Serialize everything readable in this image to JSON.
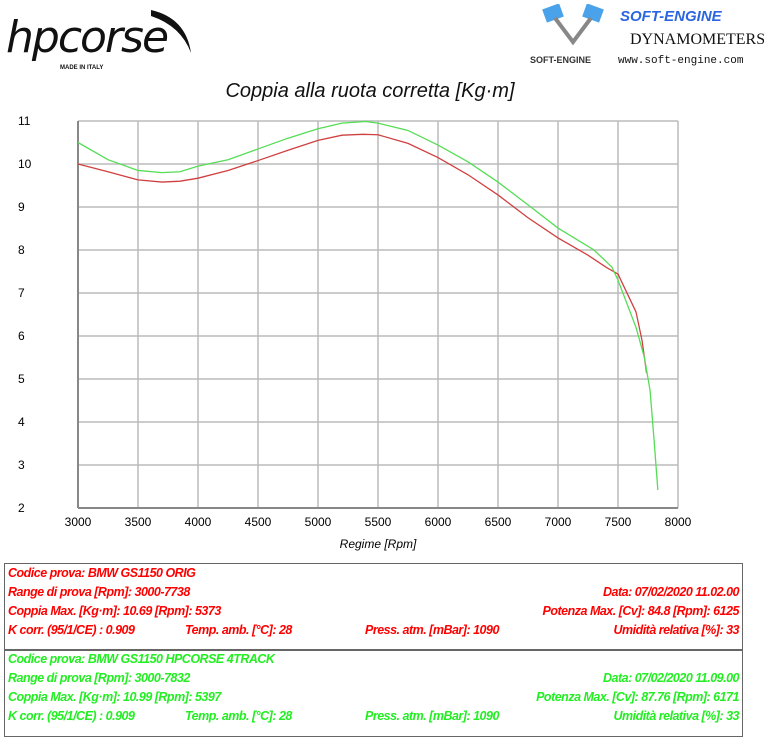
{
  "logos": {
    "left": {
      "text": "hpcorse",
      "tagline": "MADE IN ITALY"
    },
    "right": {
      "name": "SOFT-ENGINE",
      "subtitle": "DYNAMOMETERS",
      "url": "www.soft-engine.com",
      "mark": "SOFT-ENGINE"
    }
  },
  "chart_data": {
    "type": "line",
    "title": "Coppia alla ruota corretta [Kg·m]",
    "xlabel": "Regime [Rpm]",
    "ylabel": "",
    "xlim": [
      3000,
      8000
    ],
    "ylim": [
      2,
      11
    ],
    "xticks": [
      3000,
      3500,
      4000,
      4500,
      5000,
      5500,
      6000,
      6500,
      7000,
      7500,
      8000
    ],
    "yticks": [
      2,
      3,
      4,
      5,
      6,
      7,
      8,
      9,
      10,
      11
    ],
    "grid": true,
    "series": [
      {
        "color": "#d04040",
        "x": [
          3000,
          3250,
          3500,
          3700,
          3850,
          4000,
          4250,
          4500,
          4750,
          5000,
          5200,
          5373,
          5500,
          5750,
          6000,
          6250,
          6500,
          6750,
          7000,
          7250,
          7400,
          7500,
          7650,
          7700,
          7738
        ],
        "y": [
          10.0,
          9.82,
          9.63,
          9.58,
          9.6,
          9.67,
          9.85,
          10.08,
          10.32,
          10.55,
          10.67,
          10.69,
          10.68,
          10.48,
          10.15,
          9.75,
          9.28,
          8.75,
          8.28,
          7.88,
          7.6,
          7.44,
          6.56,
          5.9,
          5.14
        ]
      },
      {
        "color": "#55dd55",
        "x": [
          3000,
          3250,
          3500,
          3700,
          3850,
          4000,
          4250,
          4500,
          4750,
          5000,
          5200,
          5397,
          5500,
          5750,
          6000,
          6250,
          6500,
          6750,
          7000,
          7300,
          7450,
          7500,
          7650,
          7720,
          7767,
          7800,
          7832
        ],
        "y": [
          10.5,
          10.1,
          9.85,
          9.8,
          9.82,
          9.95,
          10.1,
          10.35,
          10.6,
          10.82,
          10.95,
          10.99,
          10.95,
          10.78,
          10.44,
          10.05,
          9.58,
          9.05,
          8.51,
          8.0,
          7.6,
          7.3,
          6.2,
          5.5,
          4.74,
          3.6,
          2.42
        ]
      }
    ]
  },
  "tests": [
    {
      "color": "#ff0000",
      "codice": "Codice prova: BMW GS1150 ORIG",
      "range": "Range di prova [Rpm]: 3000-7738",
      "data": "Data: 07/02/2020   11.02.00",
      "coppia": "Coppia Max. [Kg·m]: 10.69   [Rpm]: 5373",
      "potenza": "Potenza Max. [Cv]: 84.8   [Rpm]: 6125",
      "kcorr": "K corr. (95/1/CE) : 0.909",
      "temp": "Temp. amb. [°C]: 28",
      "press": "Press. atm. [mBar]: 1090",
      "umid": "Umidità relativa [%]: 33"
    },
    {
      "color": "#22ee22",
      "codice": "Codice prova: BMW GS1150 HPCORSE 4TRACK",
      "range": "Range di prova [Rpm]: 3000-7832",
      "data": "Data: 07/02/2020   11.09.00",
      "coppia": "Coppia Max. [Kg·m]: 10.99   [Rpm]: 5397",
      "potenza": "Potenza Max. [Cv]: 87.76   [Rpm]: 6171",
      "kcorr": "K corr. (95/1/CE) : 0.909",
      "temp": "Temp. amb. [°C]: 28",
      "press": "Press. atm. [mBar]: 1090",
      "umid": "Umidità relativa [%]: 33"
    }
  ]
}
